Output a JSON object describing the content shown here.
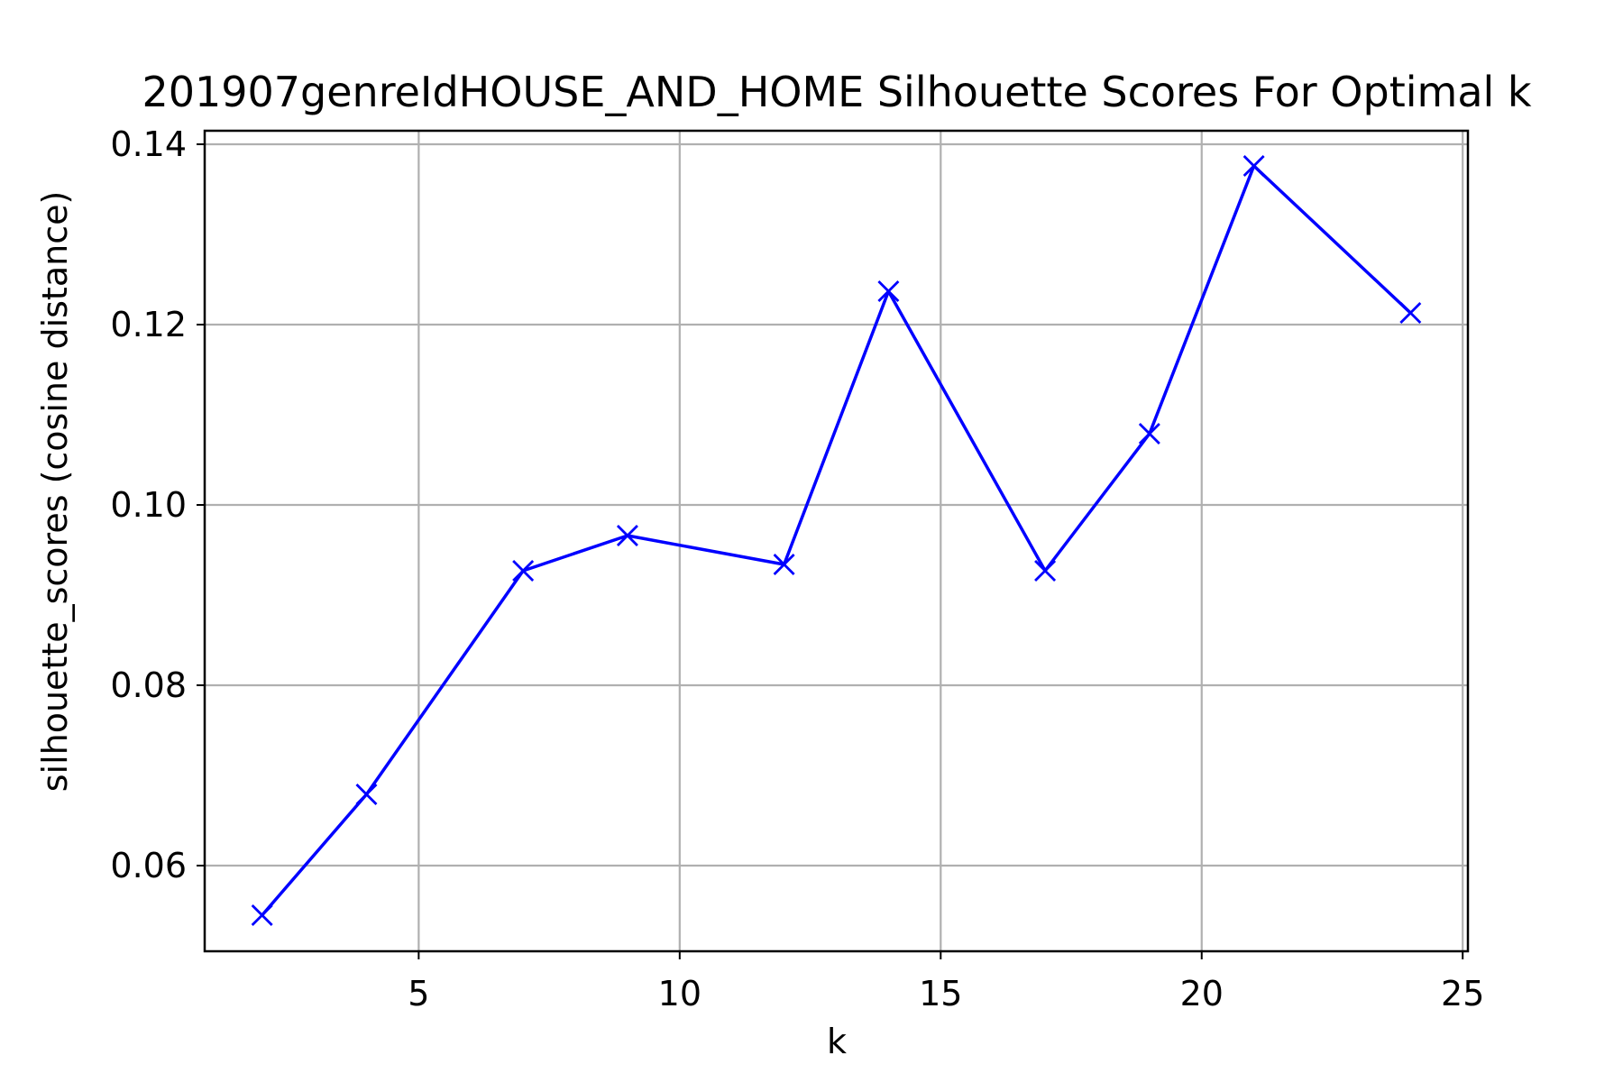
{
  "chart_data": {
    "type": "line",
    "title": "201907genreIdHOUSE_AND_HOME Silhouette Scores For Optimal k",
    "xlabel": "k",
    "ylabel": "silhouette_scores (cosine distance)",
    "xlim": [
      0.9,
      25.1
    ],
    "ylim": [
      0.0505,
      0.1415
    ],
    "xticks": [
      5,
      10,
      15,
      20,
      25
    ],
    "yticks": [
      0.06,
      0.08,
      0.1,
      0.12,
      0.14
    ],
    "xtick_labels": [
      "5",
      "10",
      "15",
      "20",
      "25"
    ],
    "ytick_labels": [
      "0.06",
      "0.08",
      "0.10",
      "0.12",
      "0.14"
    ],
    "grid": true,
    "series": [
      {
        "color": "#0000ff",
        "marker": "x",
        "x": [
          2,
          4,
          7,
          9,
          12,
          14,
          17,
          19,
          21,
          24
        ],
        "y": [
          0.0545,
          0.0679,
          0.0927,
          0.0966,
          0.0934,
          0.1237,
          0.0927,
          0.1079,
          0.1376,
          0.1213
        ]
      }
    ]
  },
  "colors": {
    "line": "#0000ff",
    "grid": "#b0b0b0",
    "axes": "#000000"
  }
}
